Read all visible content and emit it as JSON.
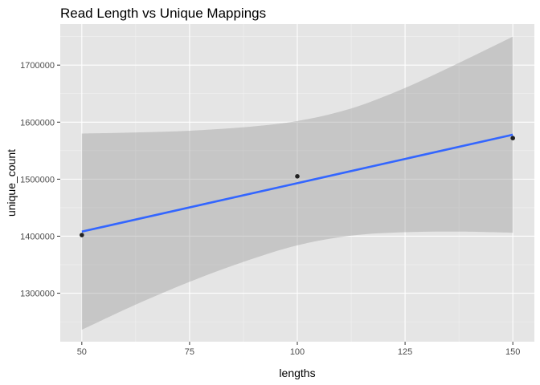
{
  "chart_data": {
    "type": "scatter",
    "title": "Read Length vs Unique Mappings",
    "xlabel": "lengths",
    "ylabel": "unique_count",
    "xlim": [
      45,
      155
    ],
    "ylim": [
      1215000,
      1772000
    ],
    "x_ticks": [
      50,
      75,
      100,
      125,
      150
    ],
    "y_ticks": [
      1300000,
      1400000,
      1500000,
      1600000,
      1700000
    ],
    "x_tick_labels": [
      "50",
      "75",
      "100",
      "125",
      "150"
    ],
    "y_tick_labels": [
      "1300000",
      "1400000",
      "1500000",
      "1600000",
      "1700000"
    ],
    "grid": true,
    "legend": "none",
    "points": [
      {
        "x": 50,
        "y": 1402000
      },
      {
        "x": 100,
        "y": 1505000
      },
      {
        "x": 150,
        "y": 1572000
      }
    ],
    "fit_line": {
      "method": "linear",
      "x": [
        50,
        150
      ],
      "y": [
        1408000,
        1578000
      ]
    },
    "confidence_band": {
      "x": [
        50,
        62.5,
        75,
        87.5,
        100,
        112.5,
        125,
        137.5,
        150
      ],
      "upper": [
        1580000,
        1582000,
        1585000,
        1591000,
        1602000,
        1624000,
        1660000,
        1704000,
        1750000
      ],
      "lower": [
        1236000,
        1280000,
        1320000,
        1355000,
        1384000,
        1401000,
        1407000,
        1408000,
        1406000
      ]
    },
    "colors": {
      "panel_background": "#e5e5e5",
      "grid_major": "#ffffff",
      "grid_minor": "#f2f2f2",
      "point": "#222222",
      "fit_line": "#3366ff",
      "band": "#999999",
      "tick_label": "#4d4d4d",
      "tick_mark": "#333333"
    }
  }
}
